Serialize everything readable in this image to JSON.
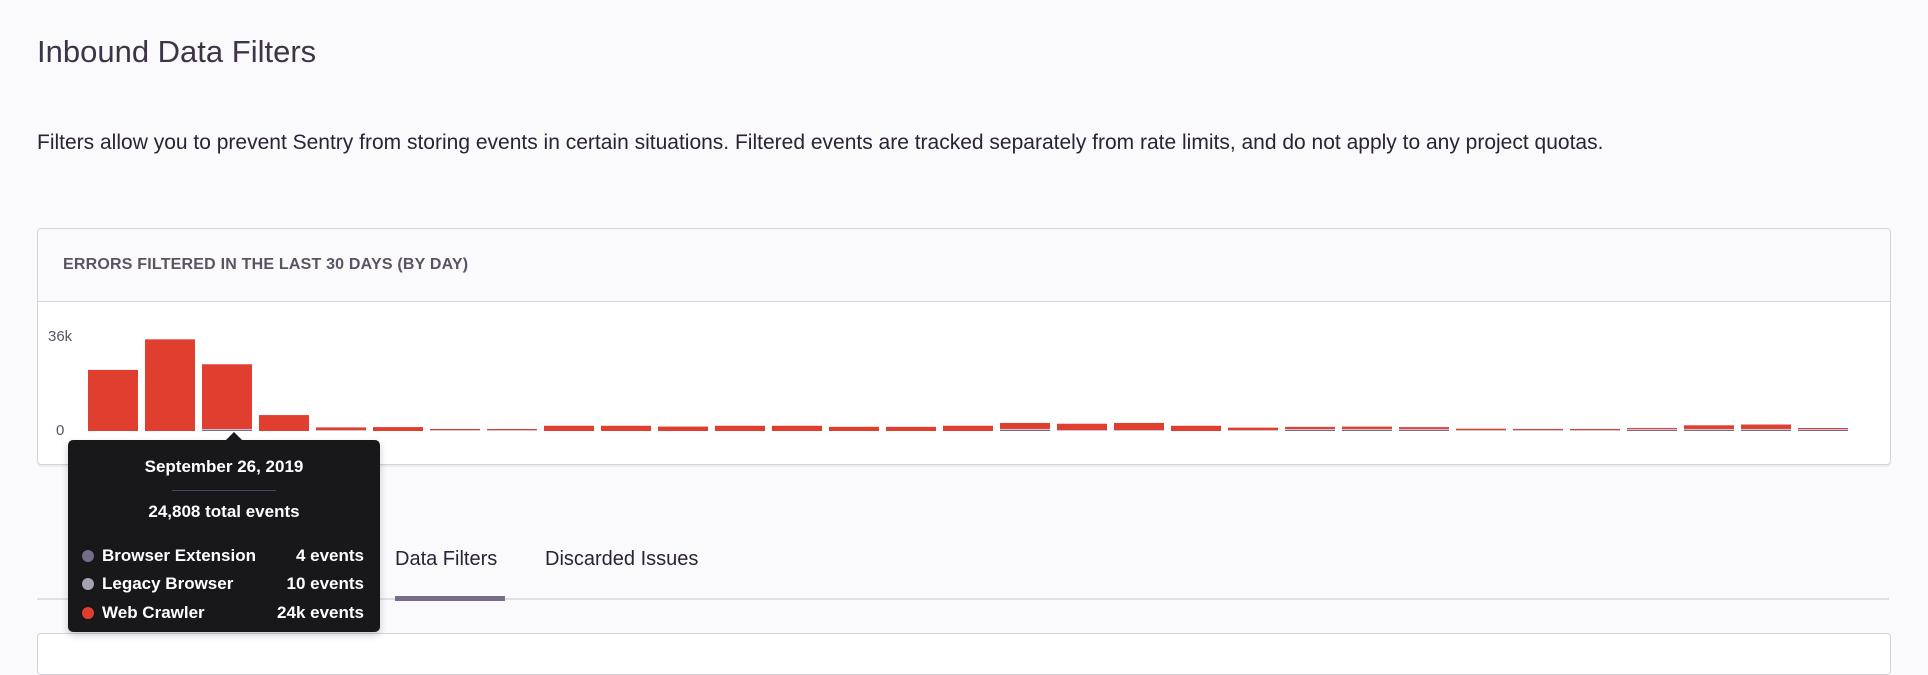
{
  "page": {
    "title": "Inbound Data Filters",
    "description": "Filters allow you to prevent Sentry from storing events in certain situations. Filtered events are tracked separately from rate limits, and do not apply to any project quotas."
  },
  "panel": {
    "title": "ERRORS FILTERED IN THE LAST 30 DAYS (BY DAY)"
  },
  "tabs": [
    {
      "label": "Data Filters",
      "active": true
    },
    {
      "label": "Discarded Issues",
      "active": false
    }
  ],
  "tooltip": {
    "date": "September 26, 2019",
    "total": "24,808 total events",
    "rows": [
      {
        "name": "Browser Extension",
        "value": "4 events",
        "color": "#756b8a"
      },
      {
        "name": "Legacy Browser",
        "value": "10 events",
        "color": "#a7a2b0"
      },
      {
        "name": "Web Crawler",
        "value": "24k events",
        "color": "#e03e2f"
      }
    ]
  },
  "chart_data": {
    "type": "bar",
    "stacked": true,
    "title": "ERRORS FILTERED IN THE LAST 30 DAYS (BY DAY)",
    "ylim": [
      0,
      36000
    ],
    "y_tick_labels": [
      "0",
      "36k"
    ],
    "grid": false,
    "highlighted_index": 2,
    "series": [
      {
        "name": "Browser Extension",
        "color": "#756b8a",
        "values": [
          0,
          0,
          4,
          0,
          0,
          0,
          0,
          0,
          0,
          0,
          0,
          0,
          0,
          0,
          0,
          0,
          400,
          0,
          0,
          0,
          0,
          400,
          400,
          400,
          0,
          0,
          0,
          400,
          400,
          400,
          300
        ]
      },
      {
        "name": "Legacy Browser",
        "color": "#c9c5cf",
        "values": [
          0,
          0,
          10,
          0,
          100,
          0,
          100,
          100,
          0,
          0,
          0,
          0,
          0,
          0,
          0,
          0,
          300,
          300,
          300,
          0,
          300,
          200,
          300,
          300,
          200,
          200,
          200,
          300,
          300,
          300,
          200
        ]
      },
      {
        "name": "Web Crawler",
        "color": "#e03e2f",
        "values": [
          23400,
          35100,
          24794,
          6100,
          1000,
          1500,
          300,
          300,
          2000,
          2000,
          1700,
          2000,
          2000,
          1600,
          1600,
          2000,
          2300,
          2400,
          2700,
          2000,
          900,
          800,
          900,
          700,
          500,
          400,
          400,
          200,
          1400,
          1700,
          200
        ]
      }
    ]
  }
}
